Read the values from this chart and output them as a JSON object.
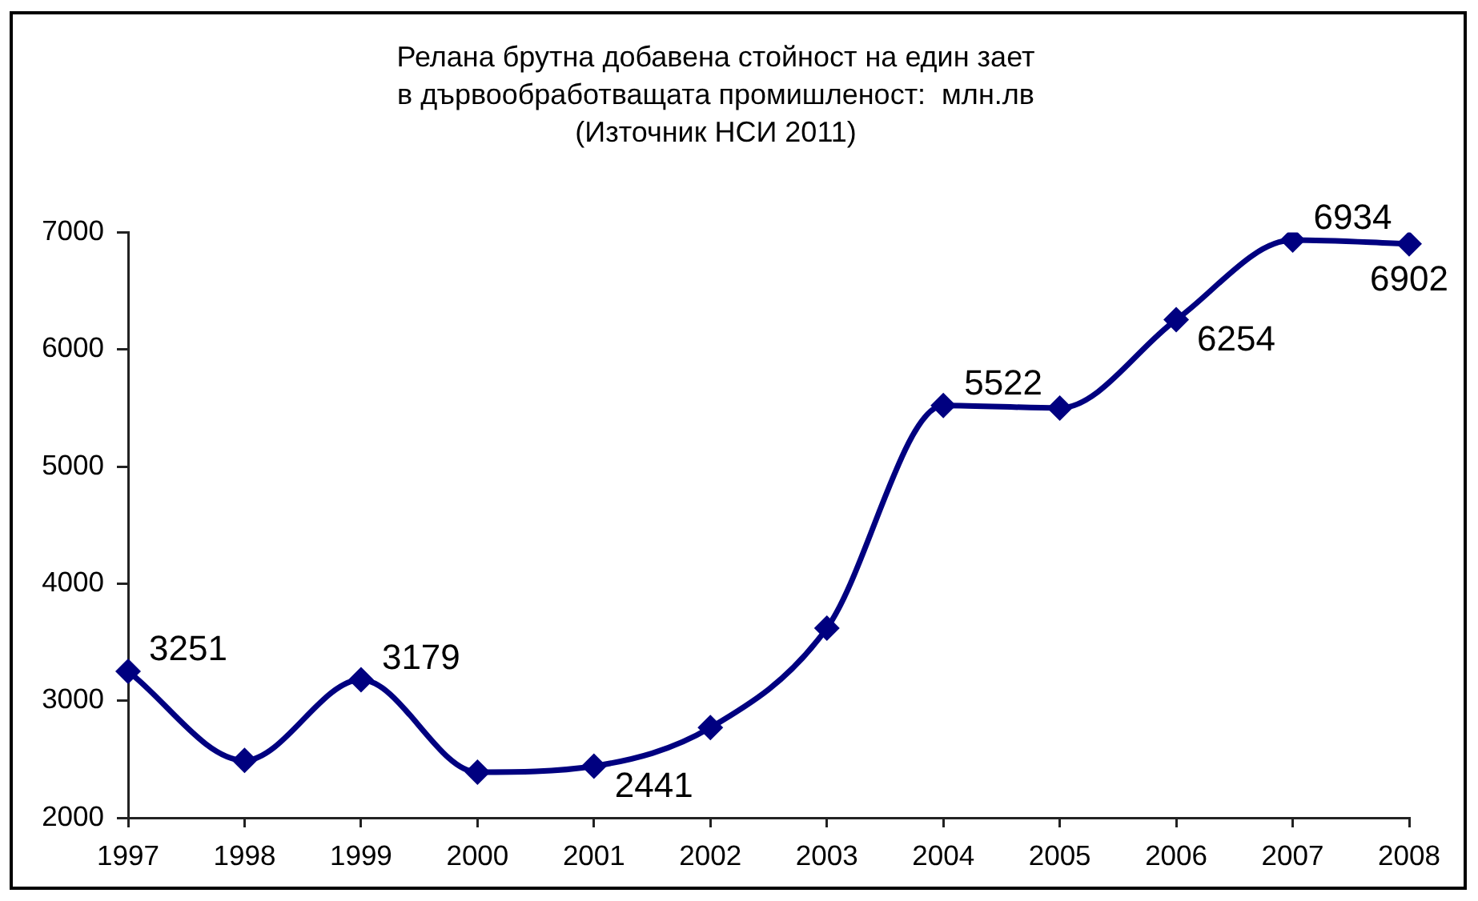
{
  "chart_data": {
    "type": "line",
    "title": "Релана брутна добавена стойност на един зает\nв дървообработващата промишленост:  млн.лв",
    "annotations": [
      "(Източник НСИ 2011)"
    ],
    "categories": [
      "1997",
      "1998",
      "1999",
      "2000",
      "2001",
      "2002",
      "2003",
      "2004",
      "2005",
      "2006",
      "2007",
      "2008"
    ],
    "values": [
      3251,
      2490,
      3179,
      2390,
      2441,
      2770,
      3620,
      5522,
      5500,
      6254,
      6934,
      6902
    ],
    "value_labels": [
      "3251",
      null,
      "3179",
      null,
      "2441",
      null,
      null,
      "5522",
      null,
      "6254",
      "6934",
      "6902"
    ],
    "color": "#000080",
    "ylim": [
      2000,
      7000
    ],
    "yticks": [
      2000,
      3000,
      4000,
      5000,
      6000,
      7000
    ],
    "marker": "diamond",
    "line_style": "solid"
  }
}
